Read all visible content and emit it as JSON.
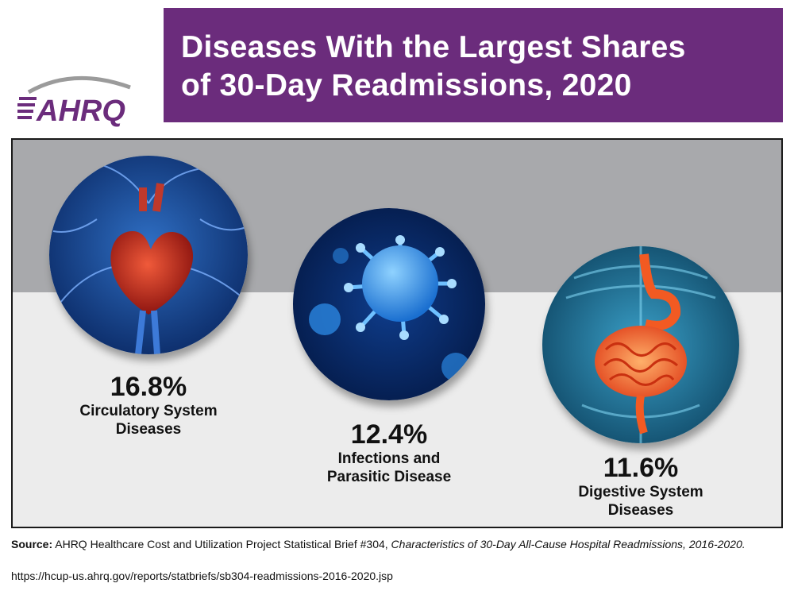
{
  "logo": {
    "text": "AHRQ",
    "color": "#6b2c7c",
    "accent": "#9b9b9b"
  },
  "header": {
    "title_line1": "Diseases With the Largest Shares",
    "title_line2": "of 30-Day Readmissions, 2020",
    "background": "#6b2c7c"
  },
  "stats": [
    {
      "value": "16.8%",
      "label": "Circulatory System\nDiseases",
      "image": "heart-icon"
    },
    {
      "value": "12.4%",
      "label": "Infections and\nParasitic Disease",
      "image": "virus-icon"
    },
    {
      "value": "11.6%",
      "label": "Digestive System\nDiseases",
      "image": "intestine-icon"
    }
  ],
  "source": {
    "prefix": "Source:",
    "text": "AHRQ Healthcare Cost and Utilization Project Statistical Brief #304,",
    "title": "Characteristics of 30-Day All-Cause Hospital Readmissions, 2016-2020.",
    "url": "https://hcup-us.ahrq.gov/reports/statbriefs/sb304-readmissions-2016-2020.jsp"
  }
}
